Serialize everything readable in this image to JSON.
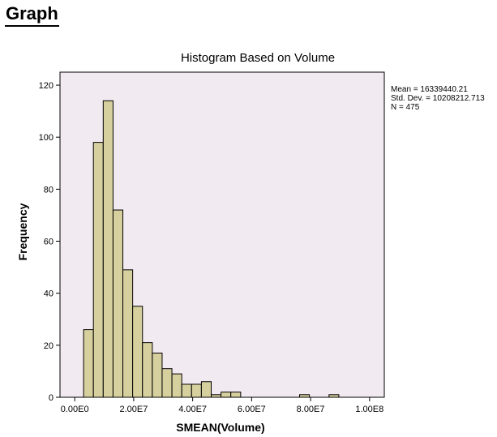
{
  "page": {
    "heading": "Graph"
  },
  "stats": {
    "mean": "Mean = 16339440.21",
    "std_dev": "Std. Dev. = 10208212.713",
    "n": "N = 475"
  },
  "colors": {
    "plot_background": "#f2eaf1",
    "bar_fill": "#d6cf9e",
    "bar_stroke": "#000000"
  },
  "chart_data": {
    "type": "bar",
    "title": "Histogram Based on Volume",
    "xlabel": "SMEAN(Volume)",
    "ylabel": "Frequency",
    "xlim": [
      -5000000,
      105000000
    ],
    "ylim": [
      0,
      125
    ],
    "x_ticks": [
      {
        "value": 0,
        "label": "0.00E0"
      },
      {
        "value": 20000000,
        "label": "2.00E7"
      },
      {
        "value": 40000000,
        "label": "4.00E7"
      },
      {
        "value": 60000000,
        "label": "6.00E7"
      },
      {
        "value": 80000000,
        "label": "8.00E7"
      },
      {
        "value": 100000000,
        "label": "1.00E8"
      }
    ],
    "y_ticks": [
      0,
      20,
      40,
      60,
      80,
      100,
      120
    ],
    "bin_width": 3330000,
    "bins": [
      {
        "start": 3000000,
        "count": 26
      },
      {
        "start": 6330000,
        "count": 98
      },
      {
        "start": 9660000,
        "count": 114
      },
      {
        "start": 12990000,
        "count": 72
      },
      {
        "start": 16320000,
        "count": 49
      },
      {
        "start": 19650000,
        "count": 35
      },
      {
        "start": 22980000,
        "count": 21
      },
      {
        "start": 26310000,
        "count": 17
      },
      {
        "start": 29640000,
        "count": 11
      },
      {
        "start": 32970000,
        "count": 9
      },
      {
        "start": 36300000,
        "count": 5
      },
      {
        "start": 39630000,
        "count": 5
      },
      {
        "start": 42960000,
        "count": 6
      },
      {
        "start": 46290000,
        "count": 1
      },
      {
        "start": 49620000,
        "count": 2
      },
      {
        "start": 52950000,
        "count": 2
      },
      {
        "start": 76260000,
        "count": 1
      },
      {
        "start": 86250000,
        "count": 1
      }
    ]
  }
}
